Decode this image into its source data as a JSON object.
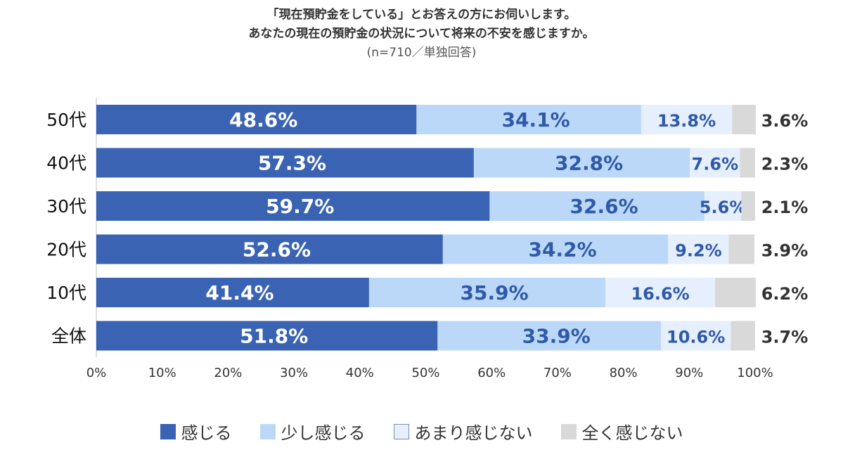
{
  "title": {
    "line1": "「現在預貯金をしている」とお答えの方にお伺いします。",
    "line2": "あなたの現在の預貯金の状況について将来の不安を感じますか。",
    "line3": "(n=710／単独回答)"
  },
  "chart_data": {
    "type": "bar",
    "orientation": "horizontal",
    "stacked": true,
    "categories": [
      "50代",
      "40代",
      "30代",
      "20代",
      "10代",
      "全体"
    ],
    "series": [
      {
        "name": "感じる",
        "color": "#3a63b3",
        "text_color": "#ffffff",
        "values": [
          48.6,
          57.3,
          59.7,
          52.6,
          41.4,
          51.8
        ]
      },
      {
        "name": "少し感じる",
        "color": "#bcd8f8",
        "text_color": "#2f5aa8",
        "values": [
          34.1,
          32.8,
          32.6,
          34.2,
          35.9,
          33.9
        ]
      },
      {
        "name": "あまり感じない",
        "color": "#e6effd",
        "text_color": "#2f5aa8",
        "values": [
          13.8,
          7.6,
          5.6,
          9.2,
          16.6,
          10.6
        ]
      },
      {
        "name": "全く感じない",
        "color": "#d9d9d9",
        "text_color": "#333333",
        "values": [
          3.6,
          2.3,
          2.1,
          3.9,
          6.2,
          3.7
        ]
      }
    ],
    "xlim": [
      0,
      100
    ],
    "xticks": [
      "0%",
      "10%",
      "20%",
      "30%",
      "40%",
      "50%",
      "60%",
      "70%",
      "80%",
      "90%",
      "100%"
    ],
    "legend_position": "bottom"
  }
}
